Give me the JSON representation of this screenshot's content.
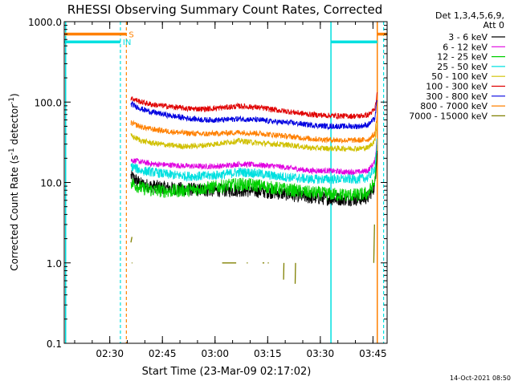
{
  "chart_data": {
    "type": "line",
    "title": "RHESSI Observing Summary Count Rates, Corrected",
    "xlabel": "Start Time (23-Mar-09 02:17:02)",
    "ylabel_main": "Corrected Count Rate (s",
    "ylabel_sup1": "-1",
    "ylabel_mid": " detector",
    "ylabel_sup2": "-1",
    "ylabel_end": ")",
    "yscale": "log",
    "ylim": [
      0.1,
      1000.0
    ],
    "x_unit": "minutes since 02:17:02",
    "xlim": [
      0,
      92
    ],
    "x_ticks": [
      {
        "label": "02:30",
        "x": 12.97
      },
      {
        "label": "02:45",
        "x": 27.97
      },
      {
        "label": "03:00",
        "x": 42.97
      },
      {
        "label": "03:15",
        "x": 57.97
      },
      {
        "label": "03:30",
        "x": 72.97
      },
      {
        "label": "03:45",
        "x": 87.97
      }
    ],
    "y_ticks": [
      {
        "label": "0.1",
        "y": 0.1
      },
      {
        "label": "1.0",
        "y": 1.0
      },
      {
        "label": "10.0",
        "y": 10.0
      },
      {
        "label": "100.0",
        "y": 100.0
      },
      {
        "label": "1000.0",
        "y": 1000.0
      }
    ],
    "legend_header": [
      "Det 1,3,4,5,6,9,",
      "Att 0"
    ],
    "legend_position": "top-right, outside plot",
    "series": [
      {
        "name": "3 - 6 keV",
        "color": "#000000",
        "x": [
          19.0,
          22,
          25,
          30,
          35,
          40,
          45,
          50,
          55,
          60,
          65,
          70,
          75,
          80,
          84,
          86.5,
          88.5,
          89.2
        ],
        "y": [
          12,
          9.5,
          9.0,
          8.5,
          8.3,
          8.0,
          8.0,
          8.0,
          7.8,
          7.5,
          7.0,
          6.5,
          6.3,
          6.2,
          6.2,
          6.5,
          9,
          26
        ]
      },
      {
        "name": "6 - 12 keV",
        "color": "#e000e0",
        "x": [
          19.0,
          22,
          25,
          30,
          35,
          40,
          45,
          50,
          55,
          60,
          65,
          70,
          75,
          80,
          84,
          86.5,
          88.5,
          89.2
        ],
        "y": [
          19,
          18,
          17,
          16.5,
          16,
          15.8,
          16,
          17,
          16.5,
          16,
          15,
          14,
          14,
          13.5,
          13.5,
          14,
          18,
          38
        ]
      },
      {
        "name": "12 - 25 keV",
        "color": "#00d000",
        "x": [
          19.0,
          22,
          25,
          30,
          35,
          40,
          45,
          50,
          55,
          60,
          65,
          70,
          75,
          80,
          84,
          86.5,
          88.5,
          89.2
        ],
        "y": [
          10,
          8.5,
          8.0,
          7.8,
          8.0,
          8.5,
          9.0,
          9.5,
          9.2,
          8.5,
          8.0,
          7.5,
          7.2,
          7.0,
          7.0,
          7.3,
          10,
          30
        ]
      },
      {
        "name": "25 - 50 keV",
        "color": "#00e0e0",
        "x": [
          19.0,
          22,
          25,
          30,
          35,
          40,
          45,
          50,
          55,
          60,
          65,
          70,
          75,
          80,
          84,
          86.5,
          88.5,
          89.2
        ],
        "y": [
          16,
          14,
          13.5,
          12.5,
          12,
          12,
          12.5,
          13.5,
          13,
          12,
          11.5,
          11,
          11,
          11,
          11,
          11.5,
          15,
          36
        ]
      },
      {
        "name": "50 - 100 keV",
        "color": "#d0c000",
        "x": [
          19.0,
          22,
          25,
          30,
          35,
          40,
          45,
          50,
          55,
          60,
          65,
          70,
          75,
          80,
          84,
          86.5,
          88.5,
          89.2
        ],
        "y": [
          38,
          33,
          31,
          29,
          28,
          29,
          31,
          33,
          31,
          30,
          29,
          27,
          26.5,
          26.5,
          26.5,
          27,
          33,
          58
        ]
      },
      {
        "name": "100 - 300 keV",
        "color": "#e00000",
        "x": [
          19.0,
          22,
          25,
          30,
          35,
          40,
          45,
          50,
          55,
          60,
          65,
          70,
          75,
          80,
          84,
          86.5,
          88.5,
          89.2
        ],
        "y": [
          112,
          100,
          93,
          88,
          83,
          82,
          85,
          89,
          86,
          80,
          75,
          70,
          68,
          67,
          67,
          69,
          80,
          130
        ]
      },
      {
        "name": "300 - 800 keV",
        "color": "#0000e0",
        "x": [
          19.0,
          22,
          25,
          30,
          35,
          40,
          45,
          50,
          55,
          60,
          65,
          70,
          75,
          80,
          84,
          86.5,
          88.5,
          89.2
        ],
        "y": [
          95,
          82,
          75,
          68,
          63,
          60,
          60,
          62,
          60,
          57,
          55,
          52,
          50,
          50,
          50,
          52,
          62,
          110
        ]
      },
      {
        "name": "800 - 7000 keV",
        "color": "#ff8000",
        "x": [
          19.0,
          22,
          25,
          30,
          35,
          40,
          45,
          50,
          55,
          60,
          65,
          70,
          75,
          80,
          84,
          86.5,
          88.5,
          89.2
        ],
        "y": [
          55,
          49,
          46,
          43,
          41,
          40,
          41,
          42,
          41,
          39,
          37,
          35,
          34,
          33.5,
          33.5,
          34,
          40,
          72
        ]
      },
      {
        "name": "7000 - 15000 keV",
        "color": "#808000",
        "segments": [
          {
            "x": [
              19.0,
              19.3
            ],
            "y": [
              1.8,
              2.1
            ]
          },
          {
            "x": [
              19.2,
              19.4
            ],
            "y": [
              1.0,
              1.0
            ]
          },
          {
            "x": [
              45,
              49
            ],
            "y": [
              1.0,
              1.0
            ]
          },
          {
            "x": [
              52.0,
              52.3
            ],
            "y": [
              1.0,
              1.0
            ]
          },
          {
            "x": [
              56.5,
              57
            ],
            "y": [
              1.0,
              1.0
            ]
          },
          {
            "x": [
              58.0,
              58.3
            ],
            "y": [
              1.0,
              1.0
            ]
          },
          {
            "x": [
              62.5,
              62.6
            ],
            "y": [
              0.62,
              1.0
            ]
          },
          {
            "x": [
              65.8,
              65.9
            ],
            "y": [
              0.55,
              1.0
            ]
          },
          {
            "x": [
              88.2,
              88.4
            ],
            "y": [
              1.0,
              3.0
            ]
          }
        ]
      }
    ],
    "flags": {
      "s_label": "S",
      "in_label": "IN",
      "orange_color": "#ff8000",
      "cyan_color": "#00e0e0",
      "orange_bar_segments": [
        [
          0,
          17.7
        ],
        [
          89.2,
          92
        ]
      ],
      "cyan_bar_segments": [
        [
          0,
          16.0
        ],
        [
          76.0,
          89.2
        ]
      ],
      "orange_bar_y": 700,
      "cyan_bar_y": 560,
      "orange_solid_x": [
        89.2
      ],
      "orange_dashed_x": [
        17.7
      ],
      "cyan_solid_x": [
        0.4,
        76.0
      ],
      "cyan_dashed_x": [
        16.0,
        91.0
      ]
    },
    "footer_date": "14-Oct-2021 08:50"
  }
}
